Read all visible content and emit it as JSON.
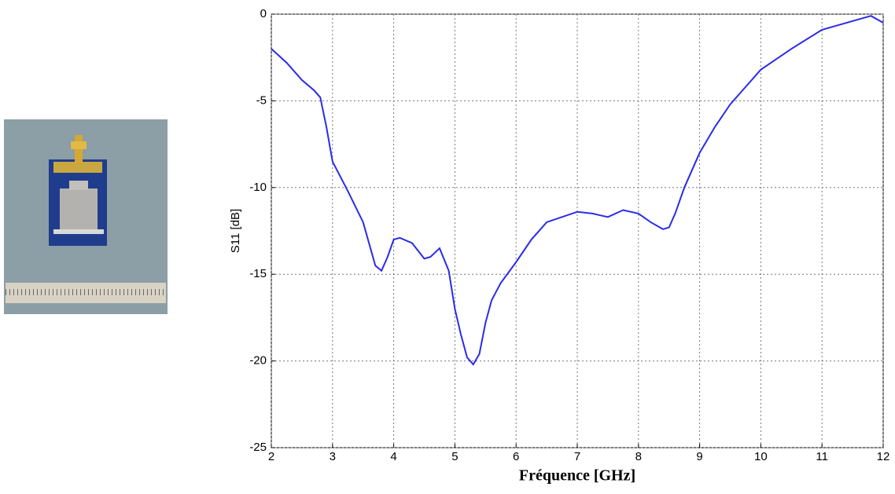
{
  "chart_data": {
    "type": "line",
    "x_label": "Fréquence [GHz]",
    "y_label": "S11 [dB]",
    "x": [
      2.0,
      2.25,
      2.5,
      2.7,
      2.8,
      2.9,
      3.0,
      3.25,
      3.5,
      3.7,
      3.8,
      3.9,
      4.0,
      4.1,
      4.3,
      4.5,
      4.6,
      4.75,
      4.9,
      5.0,
      5.1,
      5.2,
      5.3,
      5.4,
      5.5,
      5.6,
      5.75,
      6.0,
      6.25,
      6.5,
      6.75,
      7.0,
      7.25,
      7.5,
      7.75,
      8.0,
      8.2,
      8.4,
      8.5,
      8.6,
      8.75,
      9.0,
      9.25,
      9.5,
      9.75,
      10.0,
      10.5,
      11.0,
      11.5,
      11.8,
      12.0
    ],
    "series": [
      {
        "color": "#2b2bea",
        "values": [
          -2.0,
          -2.8,
          -3.8,
          -4.4,
          -4.8,
          -6.5,
          -8.5,
          -10.2,
          -12.0,
          -14.5,
          -14.8,
          -14.0,
          -13.0,
          -12.9,
          -13.2,
          -14.1,
          -14.0,
          -13.5,
          -14.8,
          -17.0,
          -18.5,
          -19.8,
          -20.2,
          -19.6,
          -17.8,
          -16.5,
          -15.5,
          -14.3,
          -13.0,
          -12.0,
          -11.7,
          -11.4,
          -11.5,
          -11.7,
          -11.3,
          -11.5,
          -12.0,
          -12.4,
          -12.3,
          -11.5,
          -10.0,
          -8.0,
          -6.5,
          -5.2,
          -4.2,
          -3.2,
          -2.0,
          -0.9,
          -0.4,
          -0.1,
          -0.5
        ]
      }
    ],
    "xlim": [
      2,
      12
    ],
    "ylim": [
      -25,
      0
    ],
    "xticks": [
      2,
      3,
      4,
      5,
      6,
      7,
      8,
      9,
      10,
      11,
      12
    ],
    "yticks": [
      0,
      -5,
      -10,
      -15,
      -20,
      -25
    ],
    "grid": true
  }
}
